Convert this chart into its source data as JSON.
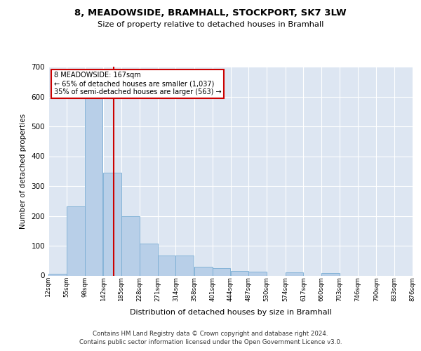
{
  "title": "8, MEADOWSIDE, BRAMHALL, STOCKPORT, SK7 3LW",
  "subtitle": "Size of property relative to detached houses in Bramhall",
  "xlabel": "Distribution of detached houses by size in Bramhall",
  "ylabel": "Number of detached properties",
  "footnote": "Contains HM Land Registry data © Crown copyright and database right 2024.\nContains public sector information licensed under the Open Government Licence v3.0.",
  "bar_color": "#b8cfe8",
  "bar_edge_color": "#7aadd4",
  "bg_color": "#dde6f2",
  "bins": [
    12,
    55,
    98,
    142,
    185,
    228,
    271,
    314,
    358,
    401,
    444,
    487,
    530,
    574,
    617,
    660,
    703,
    746,
    790,
    833,
    876
  ],
  "bin_labels": [
    "12sqm",
    "55sqm",
    "98sqm",
    "142sqm",
    "185sqm",
    "228sqm",
    "271sqm",
    "314sqm",
    "358sqm",
    "401sqm",
    "444sqm",
    "487sqm",
    "530sqm",
    "574sqm",
    "617sqm",
    "660sqm",
    "703sqm",
    "746sqm",
    "790sqm",
    "833sqm",
    "876sqm"
  ],
  "bar_heights": [
    5,
    232,
    593,
    345,
    200,
    107,
    68,
    66,
    30,
    25,
    16,
    13,
    0,
    10,
    0,
    8,
    0,
    0,
    0,
    0
  ],
  "property_size": 167,
  "annotation_lines": [
    "8 MEADOWSIDE: 167sqm",
    "← 65% of detached houses are smaller (1,037)",
    "35% of semi-detached houses are larger (563) →"
  ],
  "red_line_color": "#cc0000",
  "ylim": [
    0,
    700
  ],
  "yticks": [
    0,
    100,
    200,
    300,
    400,
    500,
    600,
    700
  ]
}
